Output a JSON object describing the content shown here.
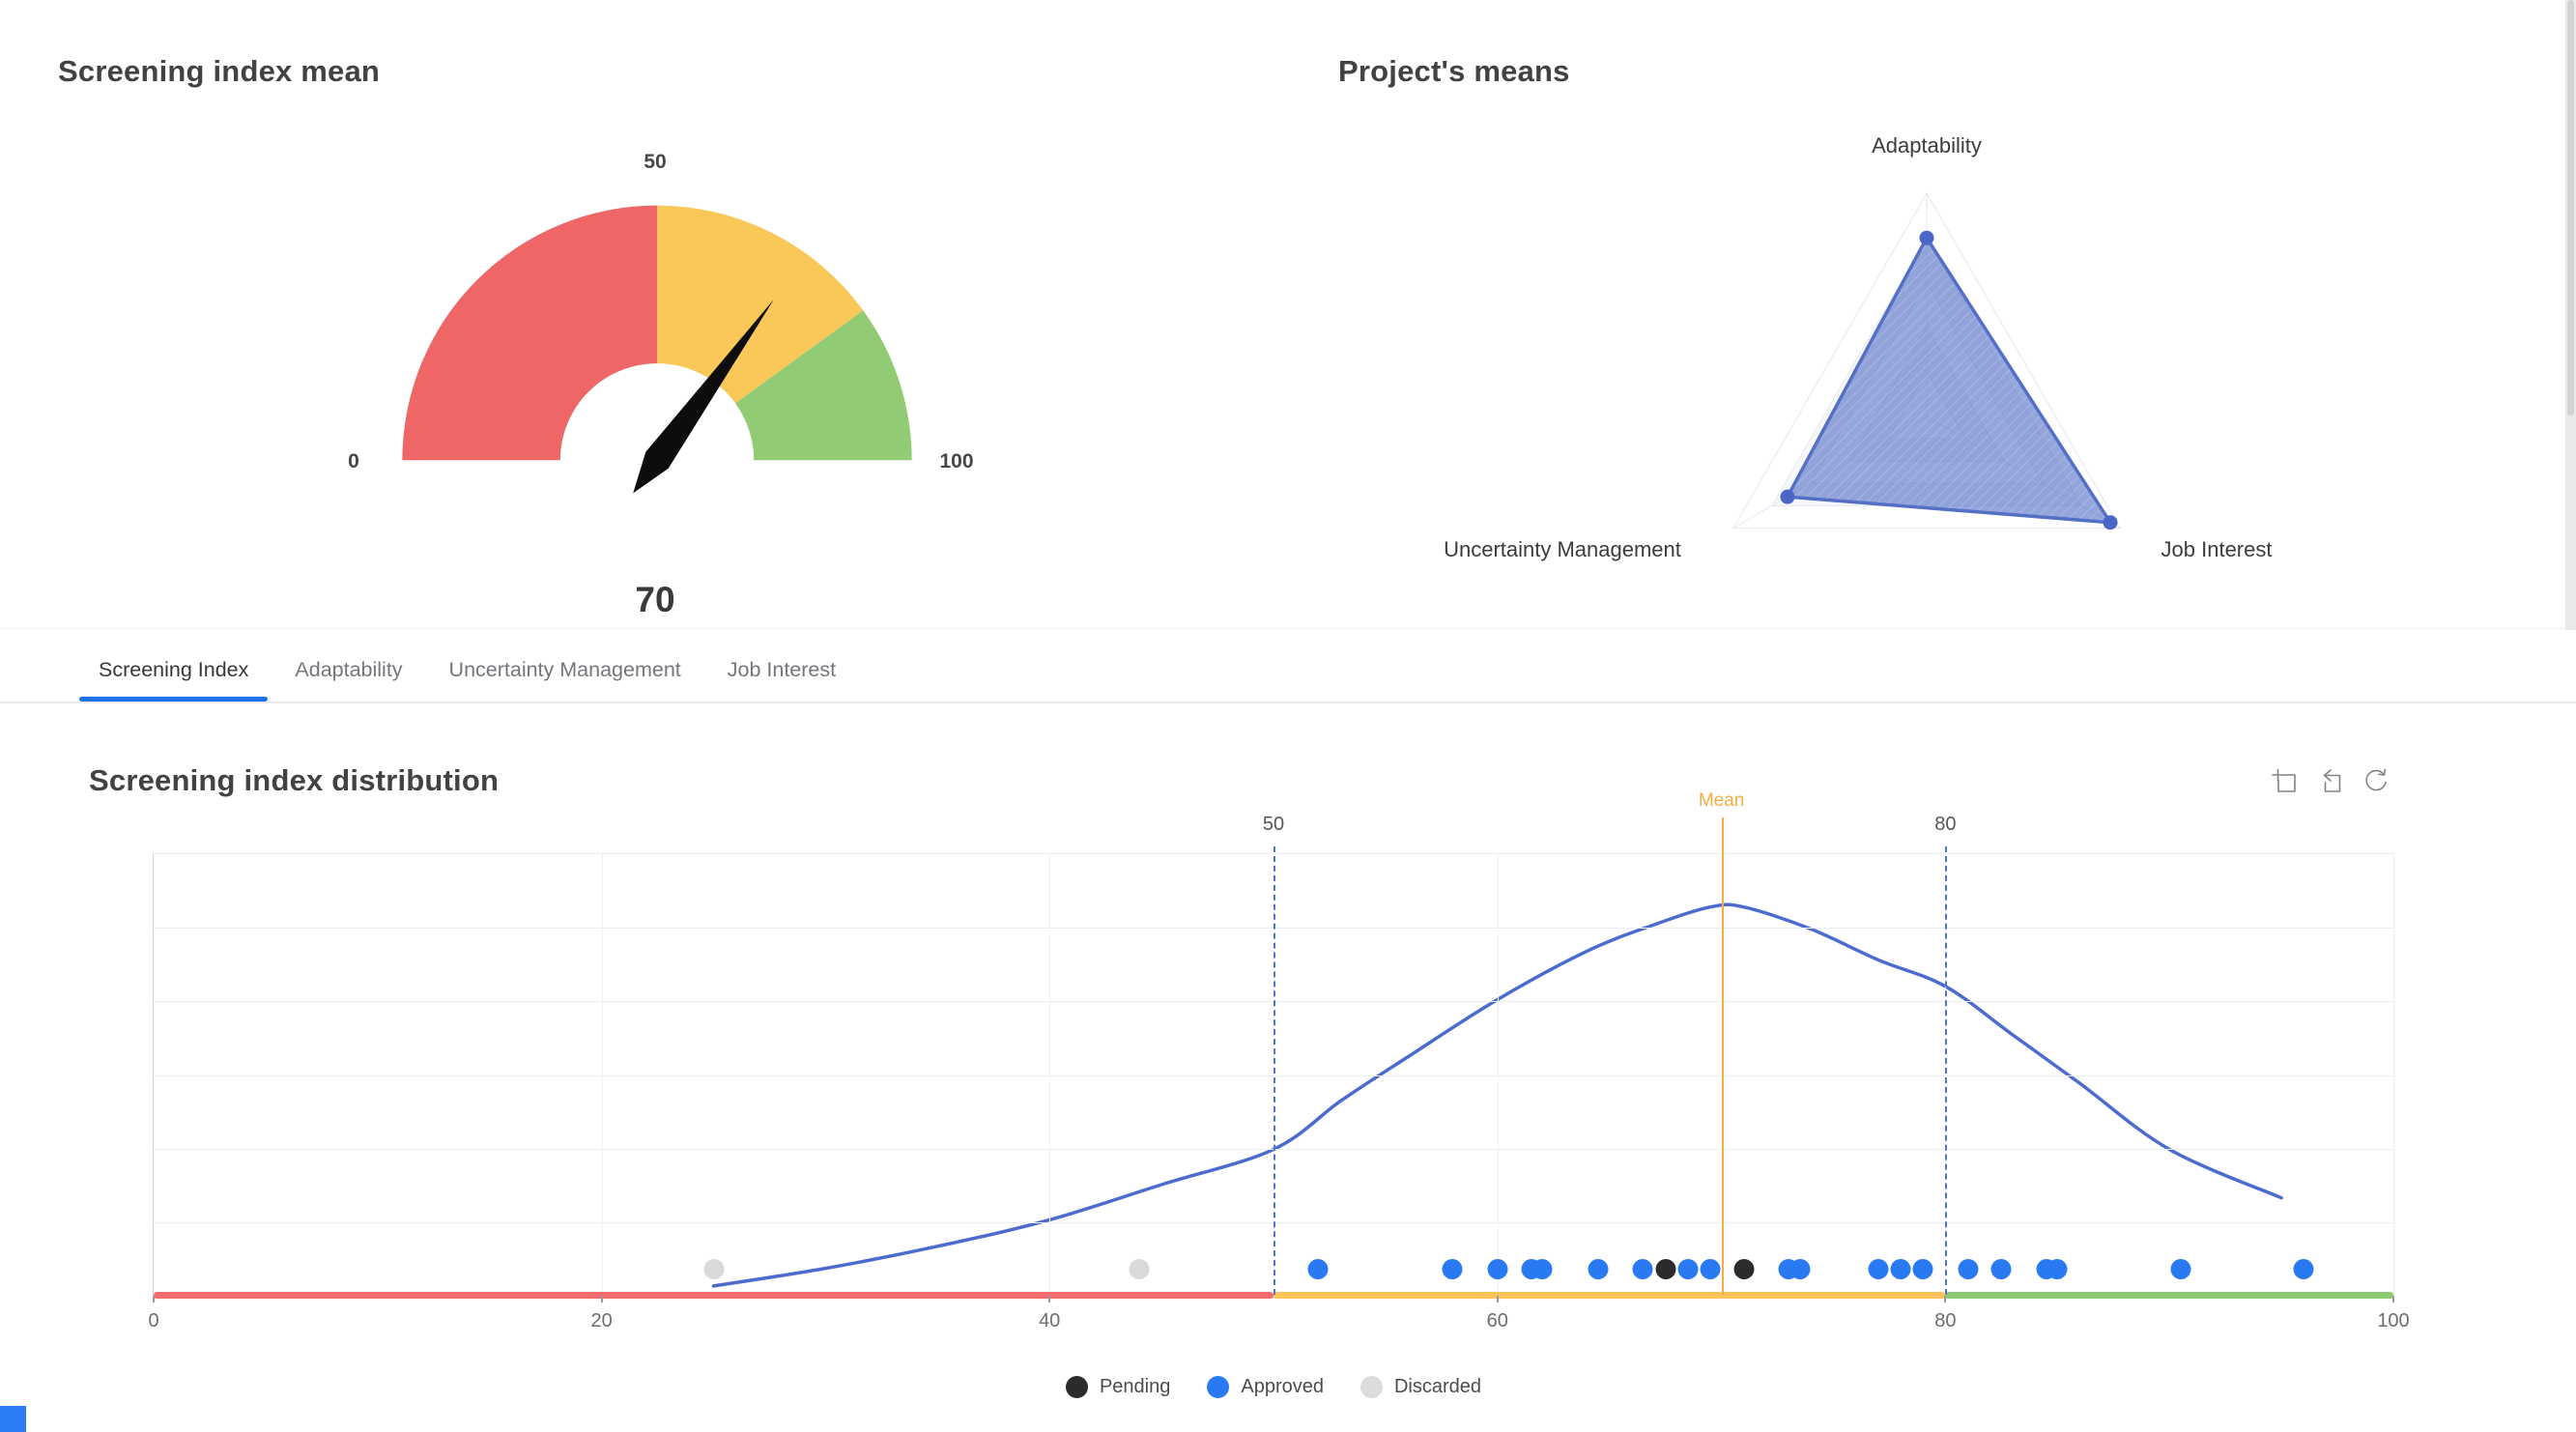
{
  "gauge_card": {
    "title": "Screening index mean",
    "value": 70,
    "value_label": "70",
    "axis_labels": {
      "min": "0",
      "mid": "50",
      "max": "100"
    },
    "segments": [
      {
        "to": 50,
        "color": "#ee6666"
      },
      {
        "to": 80,
        "color": "#fac858"
      },
      {
        "to": 100,
        "color": "#91cc75"
      }
    ],
    "needle_color": "#0d0d0d"
  },
  "radar_card": {
    "title": "Project's means",
    "axes": [
      "Adaptability",
      "Uncertainty Management",
      "Job Interest"
    ],
    "max": 100,
    "values": [
      80,
      72,
      95
    ],
    "levels": 5,
    "line_color": "#5470c6",
    "point_color": "#4a66c6",
    "fill_color": "rgba(84,112,198,0.62)"
  },
  "tabs": {
    "accent_color": "#1a73e8",
    "items": [
      {
        "label": "Screening Index",
        "active": true
      },
      {
        "label": "Adaptability",
        "active": false
      },
      {
        "label": "Uncertainty Management",
        "active": false
      },
      {
        "label": "Job Interest",
        "active": false
      }
    ]
  },
  "distribution": {
    "title": "Screening index distribution",
    "toolbar": [
      {
        "name": "zoom-select"
      },
      {
        "name": "zoom-back"
      },
      {
        "name": "restore"
      }
    ],
    "chart_data": {
      "type": "line",
      "title": "Screening index distribution",
      "xlabel": "",
      "ylabel": "",
      "x_axis": {
        "min": 0,
        "max": 100,
        "tick_values": [
          0,
          20,
          40,
          60,
          80,
          100
        ],
        "tick_labels": [
          "0",
          "20",
          "40",
          "60",
          "80",
          "100"
        ],
        "grid_values": [
          20,
          40,
          60,
          80
        ]
      },
      "y_axis": {
        "inner_gridlines": 5,
        "labels": "hidden"
      },
      "curve": {
        "name": "density",
        "color": "#4c6bce",
        "points_value_heightpct": [
          [
            25,
            2
          ],
          [
            30,
            6
          ],
          [
            35,
            11
          ],
          [
            40,
            17
          ],
          [
            45,
            25
          ],
          [
            50,
            33
          ],
          [
            53,
            44
          ],
          [
            56,
            54
          ],
          [
            60,
            67
          ],
          [
            64,
            78
          ],
          [
            67,
            84
          ],
          [
            69.5,
            88
          ],
          [
            71,
            88
          ],
          [
            74,
            83
          ],
          [
            77,
            76
          ],
          [
            80,
            70
          ],
          [
            83,
            59
          ],
          [
            86,
            48
          ],
          [
            90,
            33
          ],
          [
            95,
            22
          ]
        ]
      },
      "marklines": [
        {
          "value": 50,
          "label": "50",
          "style": "dashed",
          "color": "#4f74d2"
        },
        {
          "value": 80,
          "label": "80",
          "style": "dashed",
          "color": "#4f74d2"
        },
        {
          "value": 70,
          "label": "Mean",
          "style": "solid",
          "color": "#f2ae45"
        }
      ],
      "axis_segments": [
        {
          "from": 0,
          "to": 50,
          "color": "#f26d6d"
        },
        {
          "from": 50,
          "to": 80,
          "color": "#fac45a"
        },
        {
          "from": 80,
          "to": 100,
          "color": "#8ccb72"
        }
      ],
      "scatter": {
        "pending": {
          "color": "#2b2b2b",
          "values": [
            67.5,
            71
          ]
        },
        "approved": {
          "color": "#2979f2",
          "values": [
            52,
            58,
            60,
            61.5,
            62,
            64.5,
            66.5,
            68.5,
            69.5,
            73,
            73.5,
            77,
            78,
            79,
            81,
            82.5,
            84.5,
            85,
            90.5,
            96
          ]
        },
        "discarded": {
          "color": "#d9d9d9",
          "values": [
            25,
            44
          ]
        }
      }
    }
  },
  "legend": {
    "items": [
      {
        "label": "Pending",
        "color": "#2b2b2b"
      },
      {
        "label": "Approved",
        "color": "#2979f2"
      },
      {
        "label": "Discarded",
        "color": "#dcdcdc"
      }
    ]
  }
}
